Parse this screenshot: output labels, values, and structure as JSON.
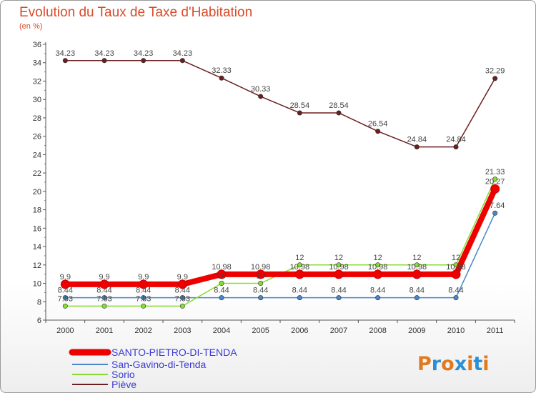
{
  "chart_data": {
    "type": "line",
    "title": "Evolution du Taux de Taxe d'Habitation",
    "subtitle": "(en %)",
    "xlabel": "",
    "ylabel": "",
    "ylim": [
      6,
      36
    ],
    "yticks": [
      "6",
      "8",
      "10",
      "12",
      "14",
      "16",
      "18",
      "20",
      "22",
      "24",
      "26",
      "28",
      "30",
      "32",
      "34",
      "36"
    ],
    "categories": [
      "2000",
      "2001",
      "2002",
      "2003",
      "2004",
      "2005",
      "2006",
      "2007",
      "2008",
      "2009",
      "2010",
      "2011"
    ],
    "legend_position": "bottom-left",
    "grid": false,
    "series": [
      {
        "name": "SANTO-PIETRO-DI-TENDA",
        "color": "#ee0000",
        "values": [
          9.9,
          9.9,
          9.9,
          9.9,
          10.98,
          10.98,
          10.98,
          10.98,
          10.98,
          10.98,
          10.98,
          20.27
        ],
        "labels": [
          "9.9",
          "9.9",
          "9.9",
          "9.9",
          "10.98",
          "10.98",
          "10.98",
          "10.98",
          "10.98",
          "10.98",
          "10.98",
          "20.27"
        ]
      },
      {
        "name": "San-Gavino-di-Tenda",
        "color": "#4a86c8",
        "values": [
          8.44,
          8.44,
          8.44,
          8.44,
          8.44,
          8.44,
          8.44,
          8.44,
          8.44,
          8.44,
          8.44,
          17.64
        ],
        "labels": [
          "8.44",
          "8.44",
          "8.44",
          "8.44",
          "8.44",
          "8.44",
          "8.44",
          "8.44",
          "8.44",
          "8.44",
          "8.44",
          "17.64"
        ]
      },
      {
        "name": "Sorio",
        "color": "#88dd33",
        "values": [
          7.53,
          7.53,
          7.53,
          7.53,
          10,
          10,
          12,
          12,
          12,
          12,
          12,
          21.33
        ],
        "labels": [
          "7.53",
          "7.53",
          "7.53",
          "7.53",
          "10",
          "10",
          "12",
          "12",
          "12",
          "12",
          "12",
          "21.33"
        ]
      },
      {
        "name": "Pièvе",
        "color": "#6b1f1f",
        "values": [
          34.23,
          34.23,
          34.23,
          34.23,
          32.33,
          30.33,
          28.54,
          28.54,
          26.54,
          24.84,
          24.84,
          32.29
        ],
        "labels": [
          "34.23",
          "34.23",
          "34.23",
          "34.23",
          "32.33",
          "30.33",
          "28.54",
          "28.54",
          "26.54",
          "24.84",
          "24.84",
          "32.29"
        ]
      }
    ]
  },
  "logo": {
    "text": "Proxiti",
    "colors": [
      "#e07a1e",
      "#2a8fd6",
      "#e07a1e",
      "#2a8fd6",
      "#e07a1e",
      "#2a8fd6",
      "#e07a1e"
    ]
  }
}
